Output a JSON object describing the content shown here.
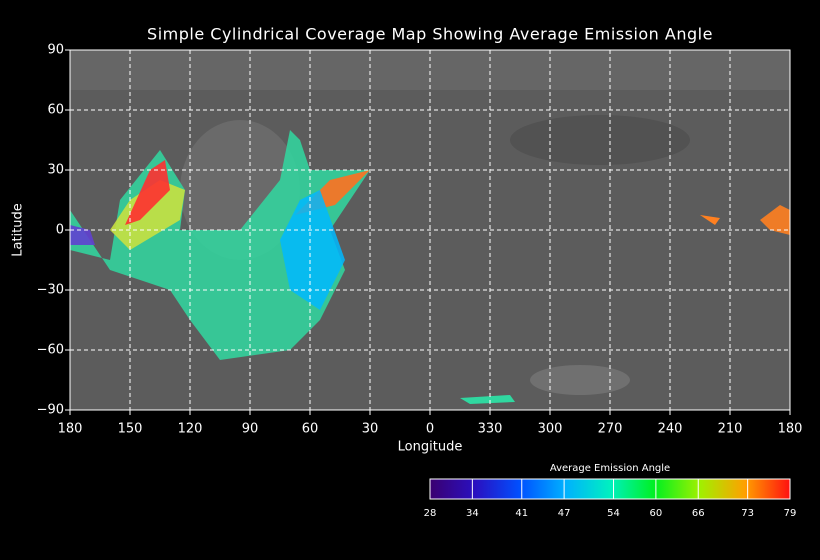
{
  "chart_data": {
    "type": "map",
    "title": "Simple Cylindrical Coverage Map Showing Average Emission Angle",
    "xlabel": "Longitude",
    "ylabel": "Latitude",
    "xlim": [
      180,
      -180
    ],
    "xticks": [
      180,
      150,
      120,
      90,
      60,
      30,
      0,
      {
        "value": -30,
        "label": "330"
      },
      {
        "value": -60,
        "label": "300"
      },
      {
        "value": -90,
        "label": "270"
      },
      {
        "value": -120,
        "label": "240"
      },
      {
        "value": -150,
        "label": "210"
      },
      {
        "value": -180,
        "label": "180"
      }
    ],
    "ylim": [
      -90,
      90
    ],
    "yticks": [
      90,
      60,
      30,
      0,
      {
        "value": -30,
        "label": "−30"
      },
      {
        "value": -60,
        "label": "−60"
      },
      {
        "value": -90,
        "label": "−90"
      }
    ],
    "grid": true,
    "colorbar": {
      "label": "Average Emission Angle",
      "range": [
        28,
        79
      ],
      "ticks": [
        28,
        34,
        41,
        47,
        54,
        60,
        66,
        73,
        79
      ],
      "colors": [
        "#3a0070",
        "#2a10c0",
        "#0050ff",
        "#00b0ff",
        "#00f0c0",
        "#00f020",
        "#a0f000",
        "#ffa000",
        "#ff1010"
      ]
    }
  }
}
